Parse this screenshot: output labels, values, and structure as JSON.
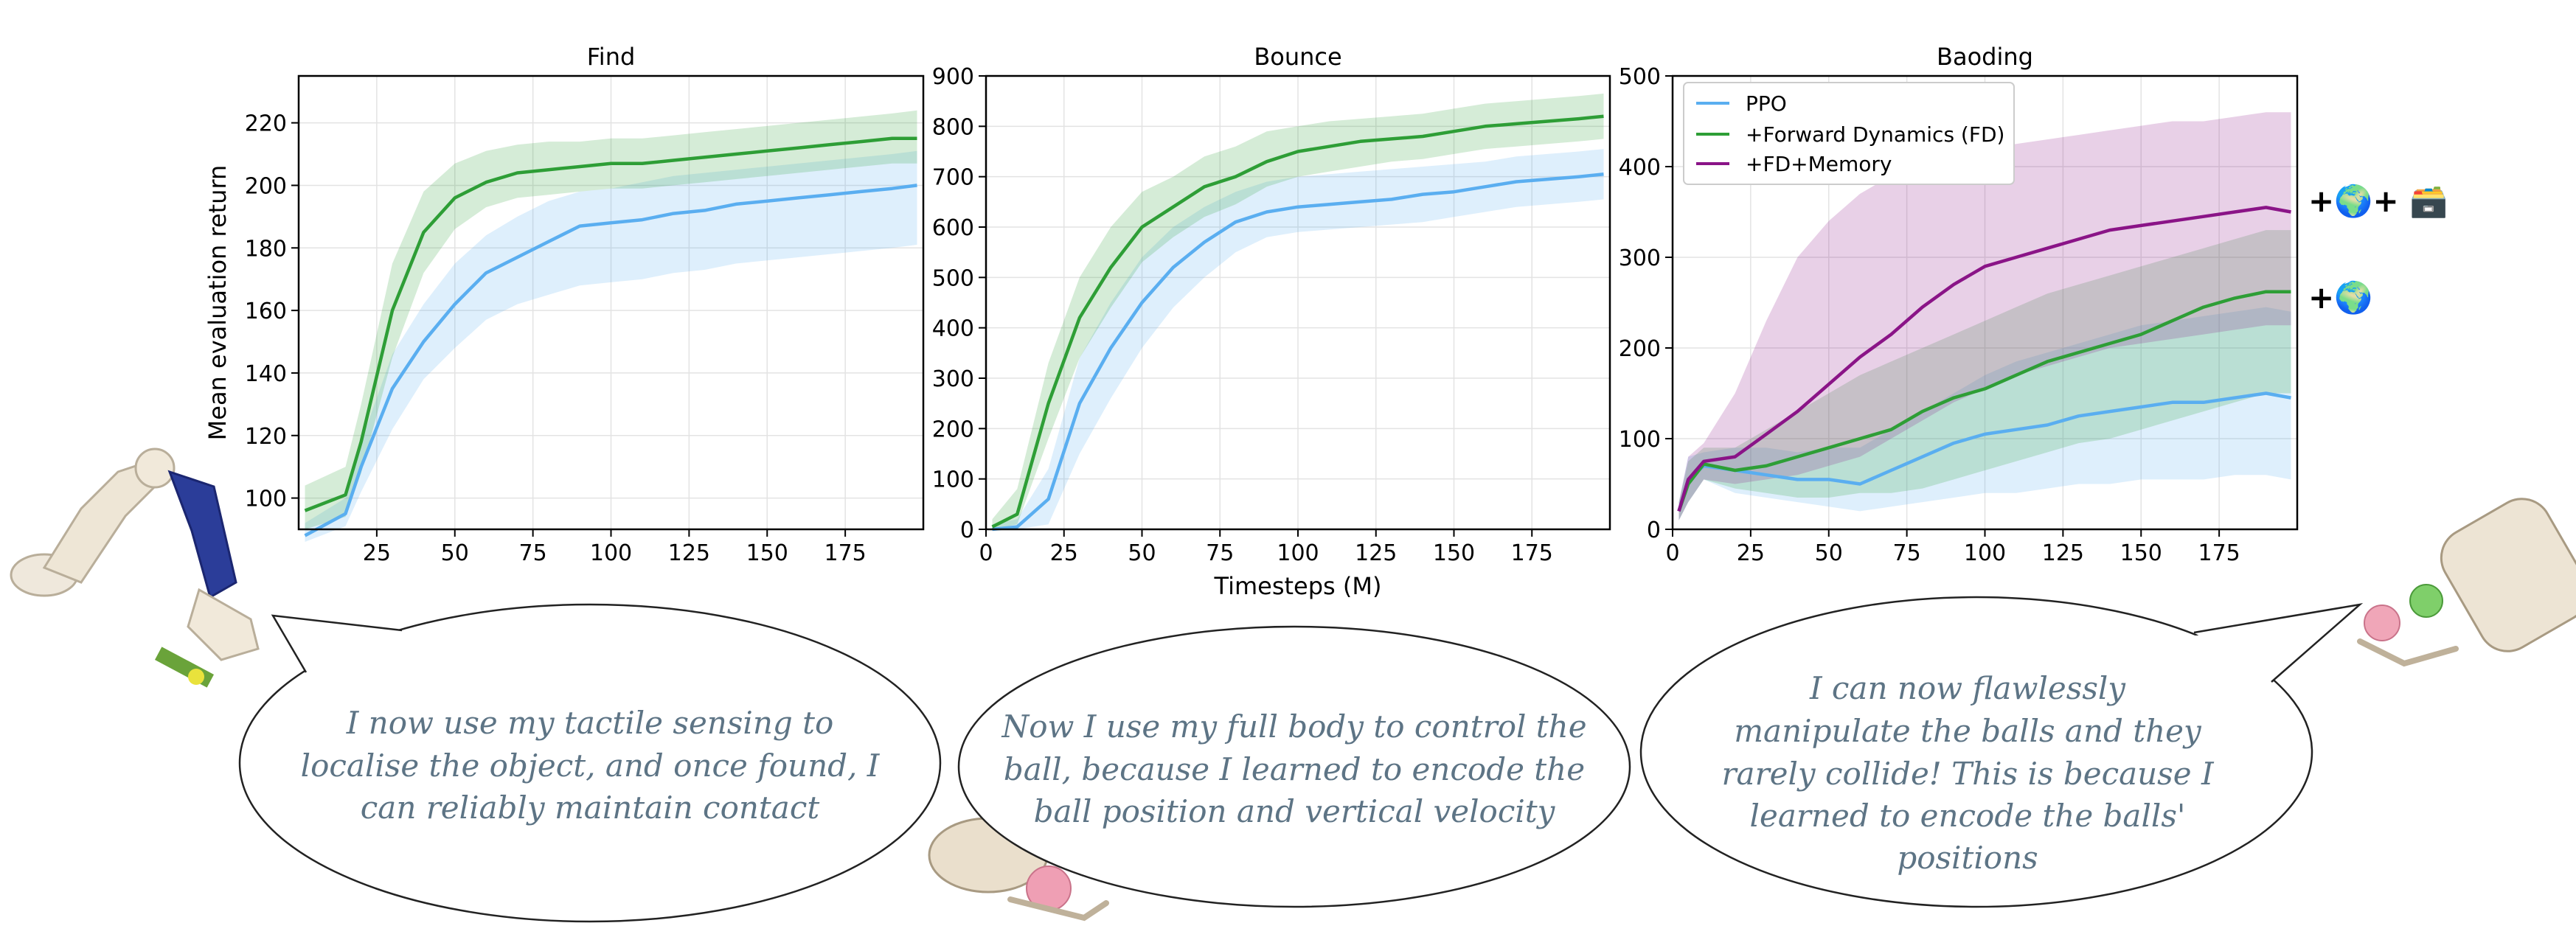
{
  "colors": {
    "ppo": "#5aaef0",
    "fd": "#2e9e36",
    "mem": "#8a1487"
  },
  "chart_data": [
    {
      "type": "line",
      "title": "Find",
      "xlabel": "",
      "ylabel": "Mean evaluation return",
      "xlim": [
        0,
        200
      ],
      "ylim": [
        90,
        235
      ],
      "xticks": [
        25,
        50,
        75,
        100,
        125,
        150,
        175
      ],
      "yticks": [
        100,
        120,
        140,
        160,
        180,
        200,
        220
      ],
      "grid": true,
      "x": [
        2,
        15,
        20,
        30,
        40,
        50,
        60,
        70,
        80,
        90,
        100,
        110,
        120,
        130,
        140,
        150,
        160,
        170,
        180,
        190,
        198
      ],
      "series": [
        {
          "name": "PPO",
          "values": [
            88,
            95,
            110,
            135,
            150,
            162,
            172,
            177,
            182,
            187,
            188,
            189,
            191,
            192,
            194,
            195,
            196,
            197,
            198,
            199,
            200
          ],
          "lower": [
            86,
            91,
            102,
            122,
            138,
            148,
            157,
            162,
            165,
            168,
            169,
            170,
            172,
            173,
            175,
            176,
            177,
            178,
            179,
            180,
            181
          ],
          "upper": [
            92,
            100,
            118,
            146,
            162,
            175,
            184,
            190,
            195,
            198,
            199,
            201,
            203,
            204,
            205,
            206,
            207,
            208,
            209,
            210,
            211
          ]
        },
        {
          "name": "+Forward Dynamics (FD)",
          "values": [
            96,
            101,
            118,
            160,
            185,
            196,
            201,
            204,
            205,
            206,
            207,
            207,
            208,
            209,
            210,
            211,
            212,
            213,
            214,
            215,
            215
          ],
          "lower": [
            90,
            94,
            108,
            145,
            172,
            186,
            193,
            196,
            197,
            198,
            199,
            199,
            200,
            201,
            202,
            203,
            204,
            205,
            206,
            207,
            207
          ],
          "upper": [
            104,
            110,
            130,
            175,
            198,
            207,
            211,
            213,
            214,
            214,
            215,
            215,
            216,
            217,
            218,
            219,
            220,
            221,
            222,
            223,
            224
          ]
        }
      ]
    },
    {
      "type": "line",
      "title": "Bounce",
      "xlabel": "Timesteps (M)",
      "ylabel": "",
      "xlim": [
        0,
        200
      ],
      "ylim": [
        0,
        900
      ],
      "xticks": [
        0,
        25,
        50,
        75,
        100,
        125,
        150,
        175
      ],
      "yticks": [
        0,
        100,
        200,
        300,
        400,
        500,
        600,
        700,
        800,
        900
      ],
      "grid": true,
      "x": [
        2,
        10,
        20,
        30,
        40,
        50,
        60,
        70,
        80,
        90,
        100,
        110,
        120,
        130,
        140,
        150,
        160,
        170,
        180,
        190,
        198
      ],
      "series": [
        {
          "name": "PPO",
          "values": [
            0,
            5,
            60,
            250,
            360,
            450,
            520,
            570,
            610,
            630,
            640,
            645,
            650,
            655,
            665,
            670,
            680,
            690,
            695,
            700,
            705
          ],
          "lower": [
            0,
            0,
            10,
            150,
            260,
            360,
            440,
            500,
            550,
            580,
            590,
            595,
            600,
            605,
            610,
            620,
            630,
            640,
            645,
            650,
            655
          ],
          "upper": [
            10,
            20,
            120,
            340,
            450,
            540,
            600,
            640,
            670,
            690,
            700,
            705,
            710,
            715,
            720,
            725,
            730,
            740,
            745,
            750,
            755
          ]
        },
        {
          "name": "+Forward Dynamics (FD)",
          "values": [
            5,
            30,
            250,
            420,
            520,
            600,
            640,
            680,
            700,
            730,
            750,
            760,
            770,
            775,
            780,
            790,
            800,
            805,
            810,
            815,
            820
          ],
          "lower": [
            0,
            10,
            180,
            340,
            440,
            530,
            580,
            620,
            645,
            680,
            700,
            710,
            720,
            730,
            735,
            745,
            755,
            760,
            765,
            770,
            775
          ],
          "upper": [
            20,
            80,
            330,
            500,
            600,
            670,
            700,
            740,
            760,
            790,
            800,
            810,
            815,
            820,
            825,
            835,
            845,
            850,
            855,
            860,
            865
          ]
        }
      ]
    },
    {
      "type": "line",
      "title": "Baoding",
      "xlabel": "",
      "ylabel": "",
      "xlim": [
        0,
        200
      ],
      "ylim": [
        0,
        500
      ],
      "xticks": [
        0,
        25,
        50,
        75,
        100,
        125,
        150,
        175
      ],
      "yticks": [
        0,
        100,
        200,
        300,
        400,
        500
      ],
      "grid": true,
      "legend": "top-left",
      "x": [
        2,
        5,
        10,
        20,
        30,
        40,
        50,
        60,
        70,
        80,
        90,
        100,
        110,
        120,
        130,
        140,
        150,
        160,
        170,
        180,
        190,
        198
      ],
      "series": [
        {
          "name": "PPO",
          "values": [
            20,
            55,
            70,
            65,
            60,
            55,
            55,
            50,
            65,
            80,
            95,
            105,
            110,
            115,
            125,
            130,
            135,
            140,
            140,
            145,
            150,
            145
          ],
          "lower": [
            10,
            30,
            55,
            40,
            35,
            30,
            25,
            20,
            25,
            30,
            35,
            40,
            40,
            45,
            50,
            50,
            55,
            55,
            55,
            60,
            60,
            55
          ],
          "upper": [
            30,
            80,
            85,
            90,
            90,
            85,
            90,
            90,
            110,
            130,
            150,
            170,
            185,
            195,
            205,
            215,
            225,
            230,
            235,
            240,
            245,
            240
          ]
        },
        {
          "name": "+Forward Dynamics (FD)",
          "values": [
            20,
            50,
            72,
            65,
            70,
            80,
            90,
            100,
            110,
            130,
            145,
            155,
            170,
            185,
            195,
            205,
            215,
            230,
            245,
            255,
            262,
            262
          ],
          "lower": [
            10,
            30,
            55,
            45,
            40,
            35,
            35,
            40,
            40,
            45,
            55,
            65,
            75,
            85,
            95,
            100,
            110,
            120,
            130,
            140,
            150,
            150
          ],
          "upper": [
            30,
            75,
            90,
            90,
            110,
            130,
            150,
            170,
            185,
            200,
            215,
            230,
            245,
            260,
            270,
            280,
            290,
            300,
            310,
            320,
            330,
            330
          ]
        },
        {
          "name": "+FD+Memory",
          "values": [
            20,
            55,
            75,
            80,
            105,
            130,
            160,
            190,
            215,
            245,
            270,
            290,
            300,
            310,
            320,
            330,
            335,
            340,
            345,
            350,
            355,
            350
          ],
          "lower": [
            10,
            30,
            55,
            50,
            55,
            60,
            70,
            80,
            100,
            120,
            140,
            155,
            170,
            180,
            190,
            200,
            205,
            210,
            215,
            220,
            225,
            225
          ],
          "upper": [
            30,
            80,
            95,
            150,
            230,
            300,
            340,
            370,
            390,
            405,
            415,
            420,
            425,
            430,
            435,
            440,
            445,
            450,
            450,
            455,
            460,
            460
          ]
        }
      ]
    }
  ],
  "annotations": {
    "badge_top": "+🌍+ 🗃️",
    "badge_bottom": "+🌍",
    "bubbles": [
      {
        "lines": [
          "I now use my tactile sensing to",
          "localise the object, and once found, I",
          "can reliably maintain contact"
        ]
      },
      {
        "lines": [
          "Now I use my full body to control the",
          "ball, because I learned to encode the",
          "ball position and vertical velocity"
        ]
      },
      {
        "lines": [
          "I can now flawlessly",
          "manipulate the balls and they",
          "rarely collide! This is because I",
          "learned to encode the balls'",
          "positions"
        ]
      }
    ]
  }
}
